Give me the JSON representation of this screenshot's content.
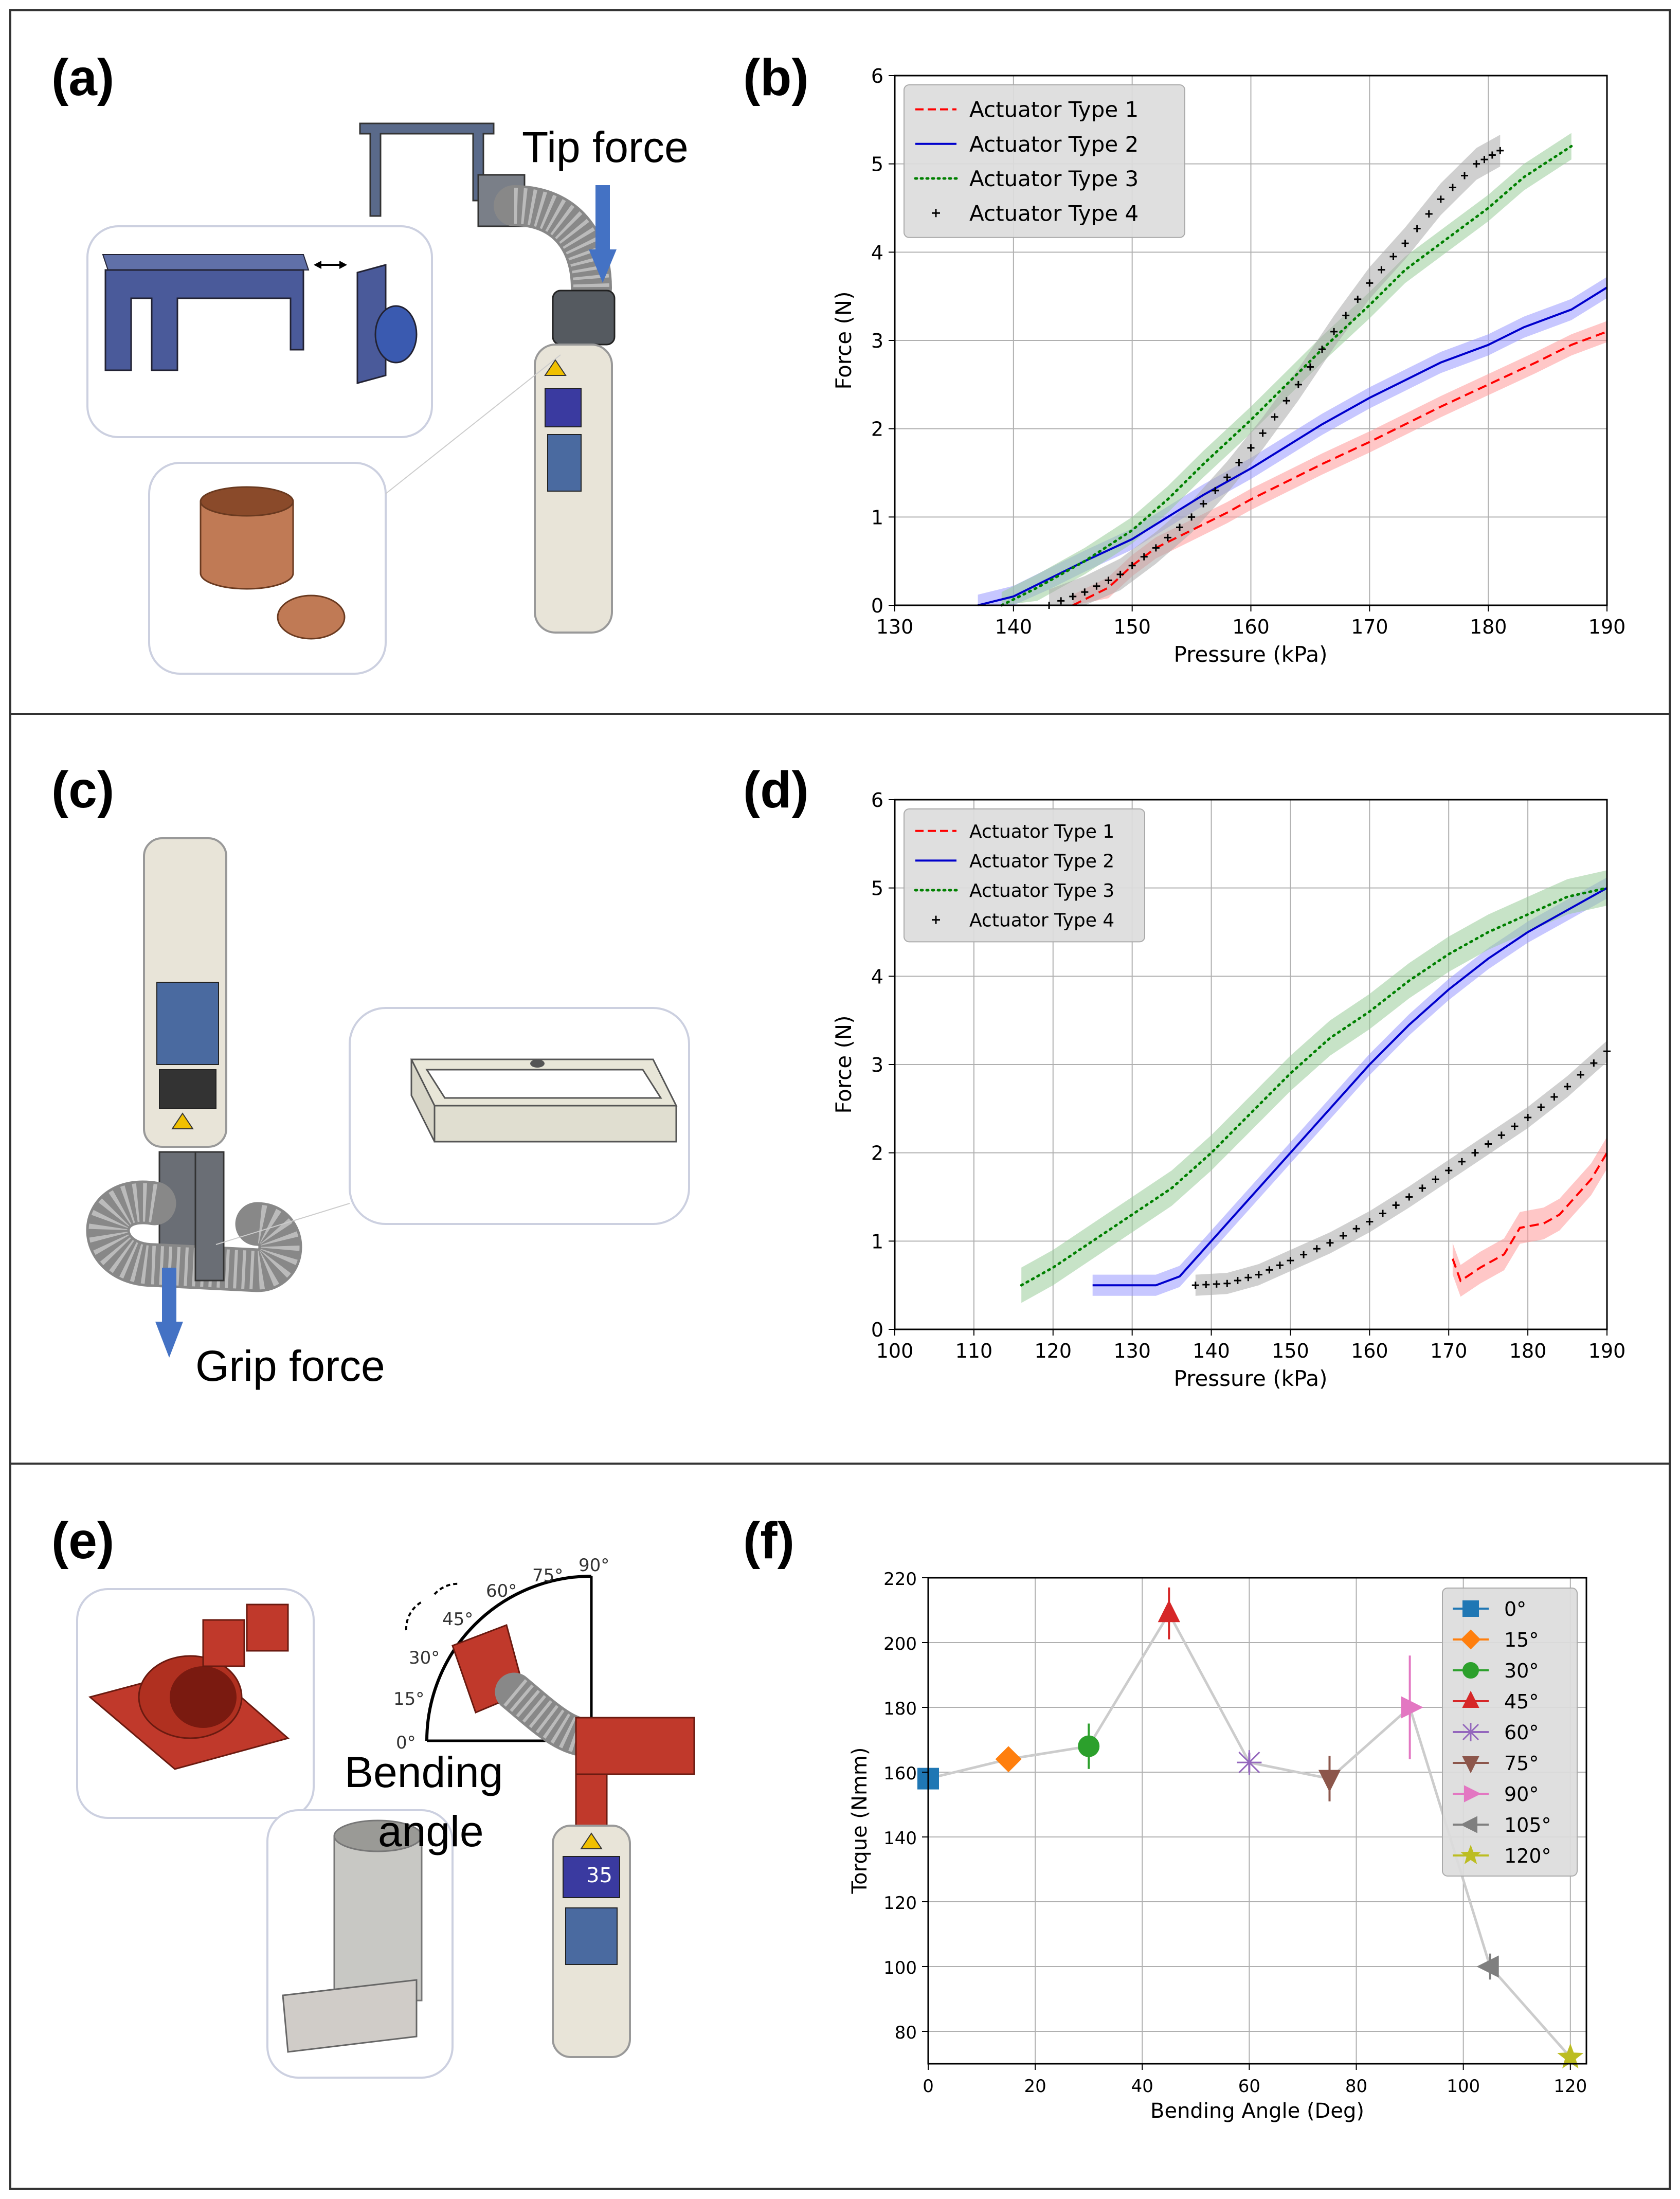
{
  "panel_labels": [
    "(a)",
    "(b)",
    "(c)",
    "(d)",
    "(e)",
    "(f)"
  ],
  "annotations": {
    "tip_force": "Tip force",
    "grip_force": "Grip force",
    "bending_angle_line1": "Bending",
    "bending_angle_line2": "angle",
    "protractor_ticks": [
      "0°",
      "15°",
      "30°",
      "45°",
      "60°",
      "75°",
      "90°"
    ],
    "device_display_value": "35"
  },
  "colors": {
    "type1": "#ff0000",
    "type2": "#0000cc",
    "type3": "#008000",
    "type4": "#000000",
    "band1": "#ff9999",
    "band2": "#9999ff",
    "band3": "#99cc99",
    "band4": "#aaaaaa",
    "arrow": "#4472c4",
    "fixture_blue": "#4a5a9a",
    "fixture_red": "#c0392b",
    "copper": "#c07a55",
    "device_body": "#e8e4d8"
  },
  "chart_data": [
    {
      "id": "b",
      "type": "line",
      "title": "",
      "xlabel": "Pressure (kPa)",
      "ylabel": "Force (N)",
      "xlim": [
        130,
        190
      ],
      "ylim": [
        0,
        6
      ],
      "xticks": [
        "130",
        "140",
        "150",
        "160",
        "170",
        "180",
        "190"
      ],
      "yticks": [
        "0",
        "1",
        "2",
        "3",
        "4",
        "5",
        "6"
      ],
      "grid": true,
      "legend": "top-left",
      "series": [
        {
          "name": "Actuator Type 1",
          "style": "dashed",
          "band": 0.12,
          "points": [
            [
              145,
              0
            ],
            [
              148,
              0.2
            ],
            [
              150,
              0.45
            ],
            [
              152,
              0.65
            ],
            [
              155,
              0.85
            ],
            [
              158,
              1.05
            ],
            [
              160,
              1.2
            ],
            [
              163,
              1.4
            ],
            [
              166,
              1.6
            ],
            [
              170,
              1.85
            ],
            [
              173,
              2.05
            ],
            [
              176,
              2.25
            ],
            [
              180,
              2.5
            ],
            [
              184,
              2.75
            ],
            [
              187,
              2.95
            ],
            [
              190,
              3.1
            ]
          ]
        },
        {
          "name": "Actuator Type 2",
          "style": "solid",
          "band": 0.12,
          "points": [
            [
              137,
              0
            ],
            [
              140,
              0.1
            ],
            [
              143,
              0.3
            ],
            [
              146,
              0.5
            ],
            [
              150,
              0.75
            ],
            [
              153,
              1.0
            ],
            [
              156,
              1.25
            ],
            [
              160,
              1.55
            ],
            [
              163,
              1.8
            ],
            [
              166,
              2.05
            ],
            [
              170,
              2.35
            ],
            [
              173,
              2.55
            ],
            [
              176,
              2.75
            ],
            [
              180,
              2.95
            ],
            [
              183,
              3.15
            ],
            [
              187,
              3.35
            ],
            [
              190,
              3.6
            ]
          ]
        },
        {
          "name": "Actuator Type 3",
          "style": "dotted",
          "band": 0.15,
          "points": [
            [
              139,
              0
            ],
            [
              142,
              0.2
            ],
            [
              146,
              0.5
            ],
            [
              150,
              0.85
            ],
            [
              153,
              1.2
            ],
            [
              156,
              1.6
            ],
            [
              160,
              2.1
            ],
            [
              163,
              2.5
            ],
            [
              166,
              2.9
            ],
            [
              170,
              3.4
            ],
            [
              173,
              3.8
            ],
            [
              176,
              4.1
            ],
            [
              180,
              4.5
            ],
            [
              183,
              4.85
            ],
            [
              187,
              5.2
            ]
          ]
        },
        {
          "name": "Actuator Type 4",
          "style": "plus",
          "band": 0.18,
          "points": [
            [
              143,
              0
            ],
            [
              146,
              0.15
            ],
            [
              149,
              0.35
            ],
            [
              152,
              0.65
            ],
            [
              155,
              1.0
            ],
            [
              158,
              1.45
            ],
            [
              161,
              1.95
            ],
            [
              164,
              2.5
            ],
            [
              167,
              3.1
            ],
            [
              170,
              3.65
            ],
            [
              173,
              4.1
            ],
            [
              176,
              4.6
            ],
            [
              179,
              5.0
            ],
            [
              181,
              5.15
            ]
          ]
        }
      ]
    },
    {
      "id": "d",
      "type": "line",
      "title": "",
      "xlabel": "Pressure (kPa)",
      "ylabel": "Force (N)",
      "xlim": [
        100,
        190
      ],
      "ylim": [
        0,
        6
      ],
      "xticks": [
        "100",
        "110",
        "120",
        "130",
        "140",
        "150",
        "160",
        "170",
        "180",
        "190"
      ],
      "yticks": [
        "0",
        "1",
        "2",
        "3",
        "4",
        "5",
        "6"
      ],
      "grid": true,
      "legend": "top-left",
      "series": [
        {
          "name": "Actuator Type 1",
          "style": "dashed",
          "band": 0.18,
          "points": [
            [
              170.5,
              0.8
            ],
            [
              171.5,
              0.55
            ],
            [
              174,
              0.7
            ],
            [
              177,
              0.85
            ],
            [
              179,
              1.15
            ],
            [
              182,
              1.2
            ],
            [
              184,
              1.3
            ],
            [
              186,
              1.5
            ],
            [
              188,
              1.7
            ],
            [
              190,
              2.0
            ]
          ]
        },
        {
          "name": "Actuator Type 2",
          "style": "solid",
          "band": 0.12,
          "points": [
            [
              125,
              0.5
            ],
            [
              133,
              0.5
            ],
            [
              136,
              0.6
            ],
            [
              140,
              1.0
            ],
            [
              145,
              1.5
            ],
            [
              150,
              2.0
            ],
            [
              155,
              2.5
            ],
            [
              160,
              3.0
            ],
            [
              165,
              3.45
            ],
            [
              170,
              3.85
            ],
            [
              175,
              4.2
            ],
            [
              180,
              4.5
            ],
            [
              185,
              4.75
            ],
            [
              190,
              5.0
            ]
          ]
        },
        {
          "name": "Actuator Type 3",
          "style": "dotted",
          "band": 0.2,
          "points": [
            [
              116,
              0.5
            ],
            [
              120,
              0.7
            ],
            [
              125,
              1.0
            ],
            [
              130,
              1.3
            ],
            [
              135,
              1.6
            ],
            [
              140,
              2.0
            ],
            [
              145,
              2.45
            ],
            [
              150,
              2.9
            ],
            [
              155,
              3.3
            ],
            [
              160,
              3.6
            ],
            [
              165,
              3.95
            ],
            [
              170,
              4.25
            ],
            [
              175,
              4.5
            ],
            [
              180,
              4.7
            ],
            [
              185,
              4.9
            ],
            [
              190,
              5.0
            ]
          ]
        },
        {
          "name": "Actuator Type 4",
          "style": "plus",
          "band": 0.12,
          "points": [
            [
              138,
              0.5
            ],
            [
              142,
              0.52
            ],
            [
              146,
              0.62
            ],
            [
              150,
              0.78
            ],
            [
              155,
              0.98
            ],
            [
              160,
              1.22
            ],
            [
              165,
              1.5
            ],
            [
              170,
              1.8
            ],
            [
              175,
              2.1
            ],
            [
              180,
              2.4
            ],
            [
              185,
              2.75
            ],
            [
              190,
              3.15
            ]
          ]
        }
      ]
    },
    {
      "id": "f",
      "type": "scatter",
      "title": "",
      "xlabel": "Bending Angle (Deg)",
      "ylabel": "Torque (Nmm)",
      "xlim": [
        0,
        123
      ],
      "ylim": [
        70,
        220
      ],
      "xticks": [
        "0",
        "20",
        "40",
        "60",
        "80",
        "100",
        "120"
      ],
      "yticks": [
        "80",
        "100",
        "120",
        "140",
        "160",
        "180",
        "200",
        "220"
      ],
      "grid": true,
      "legend": "top-right",
      "series": [
        {
          "name": "0°",
          "x": 0,
          "y": 158,
          "err": 3,
          "marker": "square",
          "color": "#1f77b4"
        },
        {
          "name": "15°",
          "x": 15,
          "y": 164,
          "err": 2,
          "marker": "diamond",
          "color": "#ff7f0e"
        },
        {
          "name": "30°",
          "x": 30,
          "y": 168,
          "err": 7,
          "marker": "circle",
          "color": "#2ca02c"
        },
        {
          "name": "45°",
          "x": 45,
          "y": 209,
          "err": 8,
          "marker": "triangle-up",
          "color": "#d62728"
        },
        {
          "name": "60°",
          "x": 60,
          "y": 163,
          "err": 3,
          "marker": "star-x",
          "color": "#9467bd"
        },
        {
          "name": "75°",
          "x": 75,
          "y": 158,
          "err": 7,
          "marker": "triangle-down",
          "color": "#8c564b"
        },
        {
          "name": "90°",
          "x": 90,
          "y": 180,
          "err": 16,
          "marker": "triangle-right",
          "color": "#e377c2"
        },
        {
          "name": "105°",
          "x": 105,
          "y": 100,
          "err": 4,
          "marker": "triangle-left",
          "color": "#7f7f7f"
        },
        {
          "name": "120°",
          "x": 120,
          "y": 72,
          "err": 2,
          "marker": "star",
          "color": "#bcbd22"
        }
      ]
    }
  ]
}
